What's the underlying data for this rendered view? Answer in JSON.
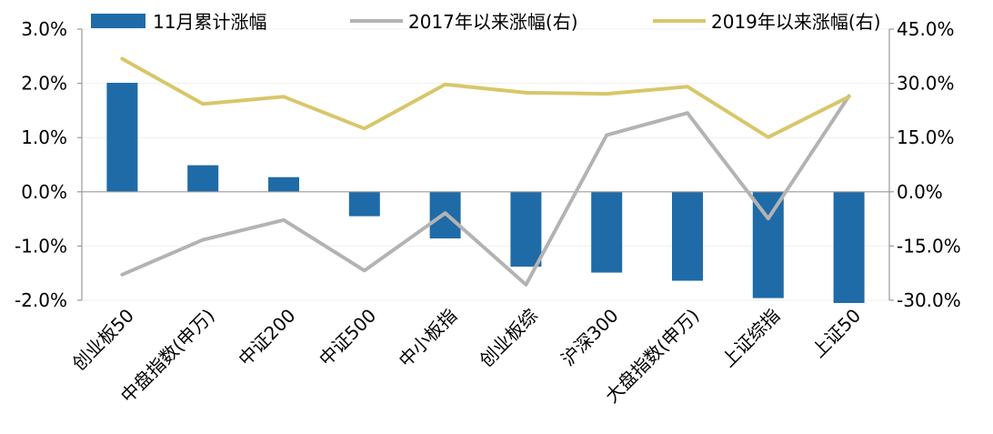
{
  "chart_data": {
    "type": "bar+line",
    "categories": [
      "创业板50",
      "中盘指数(申万)",
      "中证200",
      "中证500",
      "中小板指",
      "创业板综",
      "沪深300",
      "大盘指数(申万)",
      "上证综指",
      "上证50"
    ],
    "left_axis": {
      "min": -2.0,
      "max": 3.0,
      "step": 1.0,
      "ticks": [
        "-2.0%",
        "-1.0%",
        "0.0%",
        "1.0%",
        "2.0%",
        "3.0%"
      ]
    },
    "right_axis": {
      "min": -30.0,
      "max": 45.0,
      "step": 15.0,
      "ticks": [
        "-30.0%",
        "-15.0%",
        "0.0%",
        "15.0%",
        "30.0%",
        "45.0%"
      ]
    },
    "series": [
      {
        "name": "11月累计涨幅",
        "kind": "bar",
        "axis": "left",
        "color": "#1F6BA8",
        "values": [
          2.01,
          0.49,
          0.27,
          -0.45,
          -0.86,
          -1.38,
          -1.49,
          -1.64,
          -1.96,
          -2.05
        ]
      },
      {
        "name": "2017年以来涨幅(右)",
        "kind": "line",
        "axis": "right",
        "color": "#B3B3B3",
        "values": [
          -22.9,
          -13.3,
          -7.8,
          -21.8,
          -5.9,
          -25.7,
          15.7,
          21.8,
          -7.4,
          26.5
        ]
      },
      {
        "name": "2019年以来涨幅(右)",
        "kind": "line",
        "axis": "right",
        "color": "#D9C66A",
        "values": [
          36.8,
          24.3,
          26.3,
          17.5,
          29.7,
          27.4,
          27.1,
          29.1,
          15.1,
          26.3
        ]
      }
    ],
    "grid": true,
    "legend": "top"
  }
}
